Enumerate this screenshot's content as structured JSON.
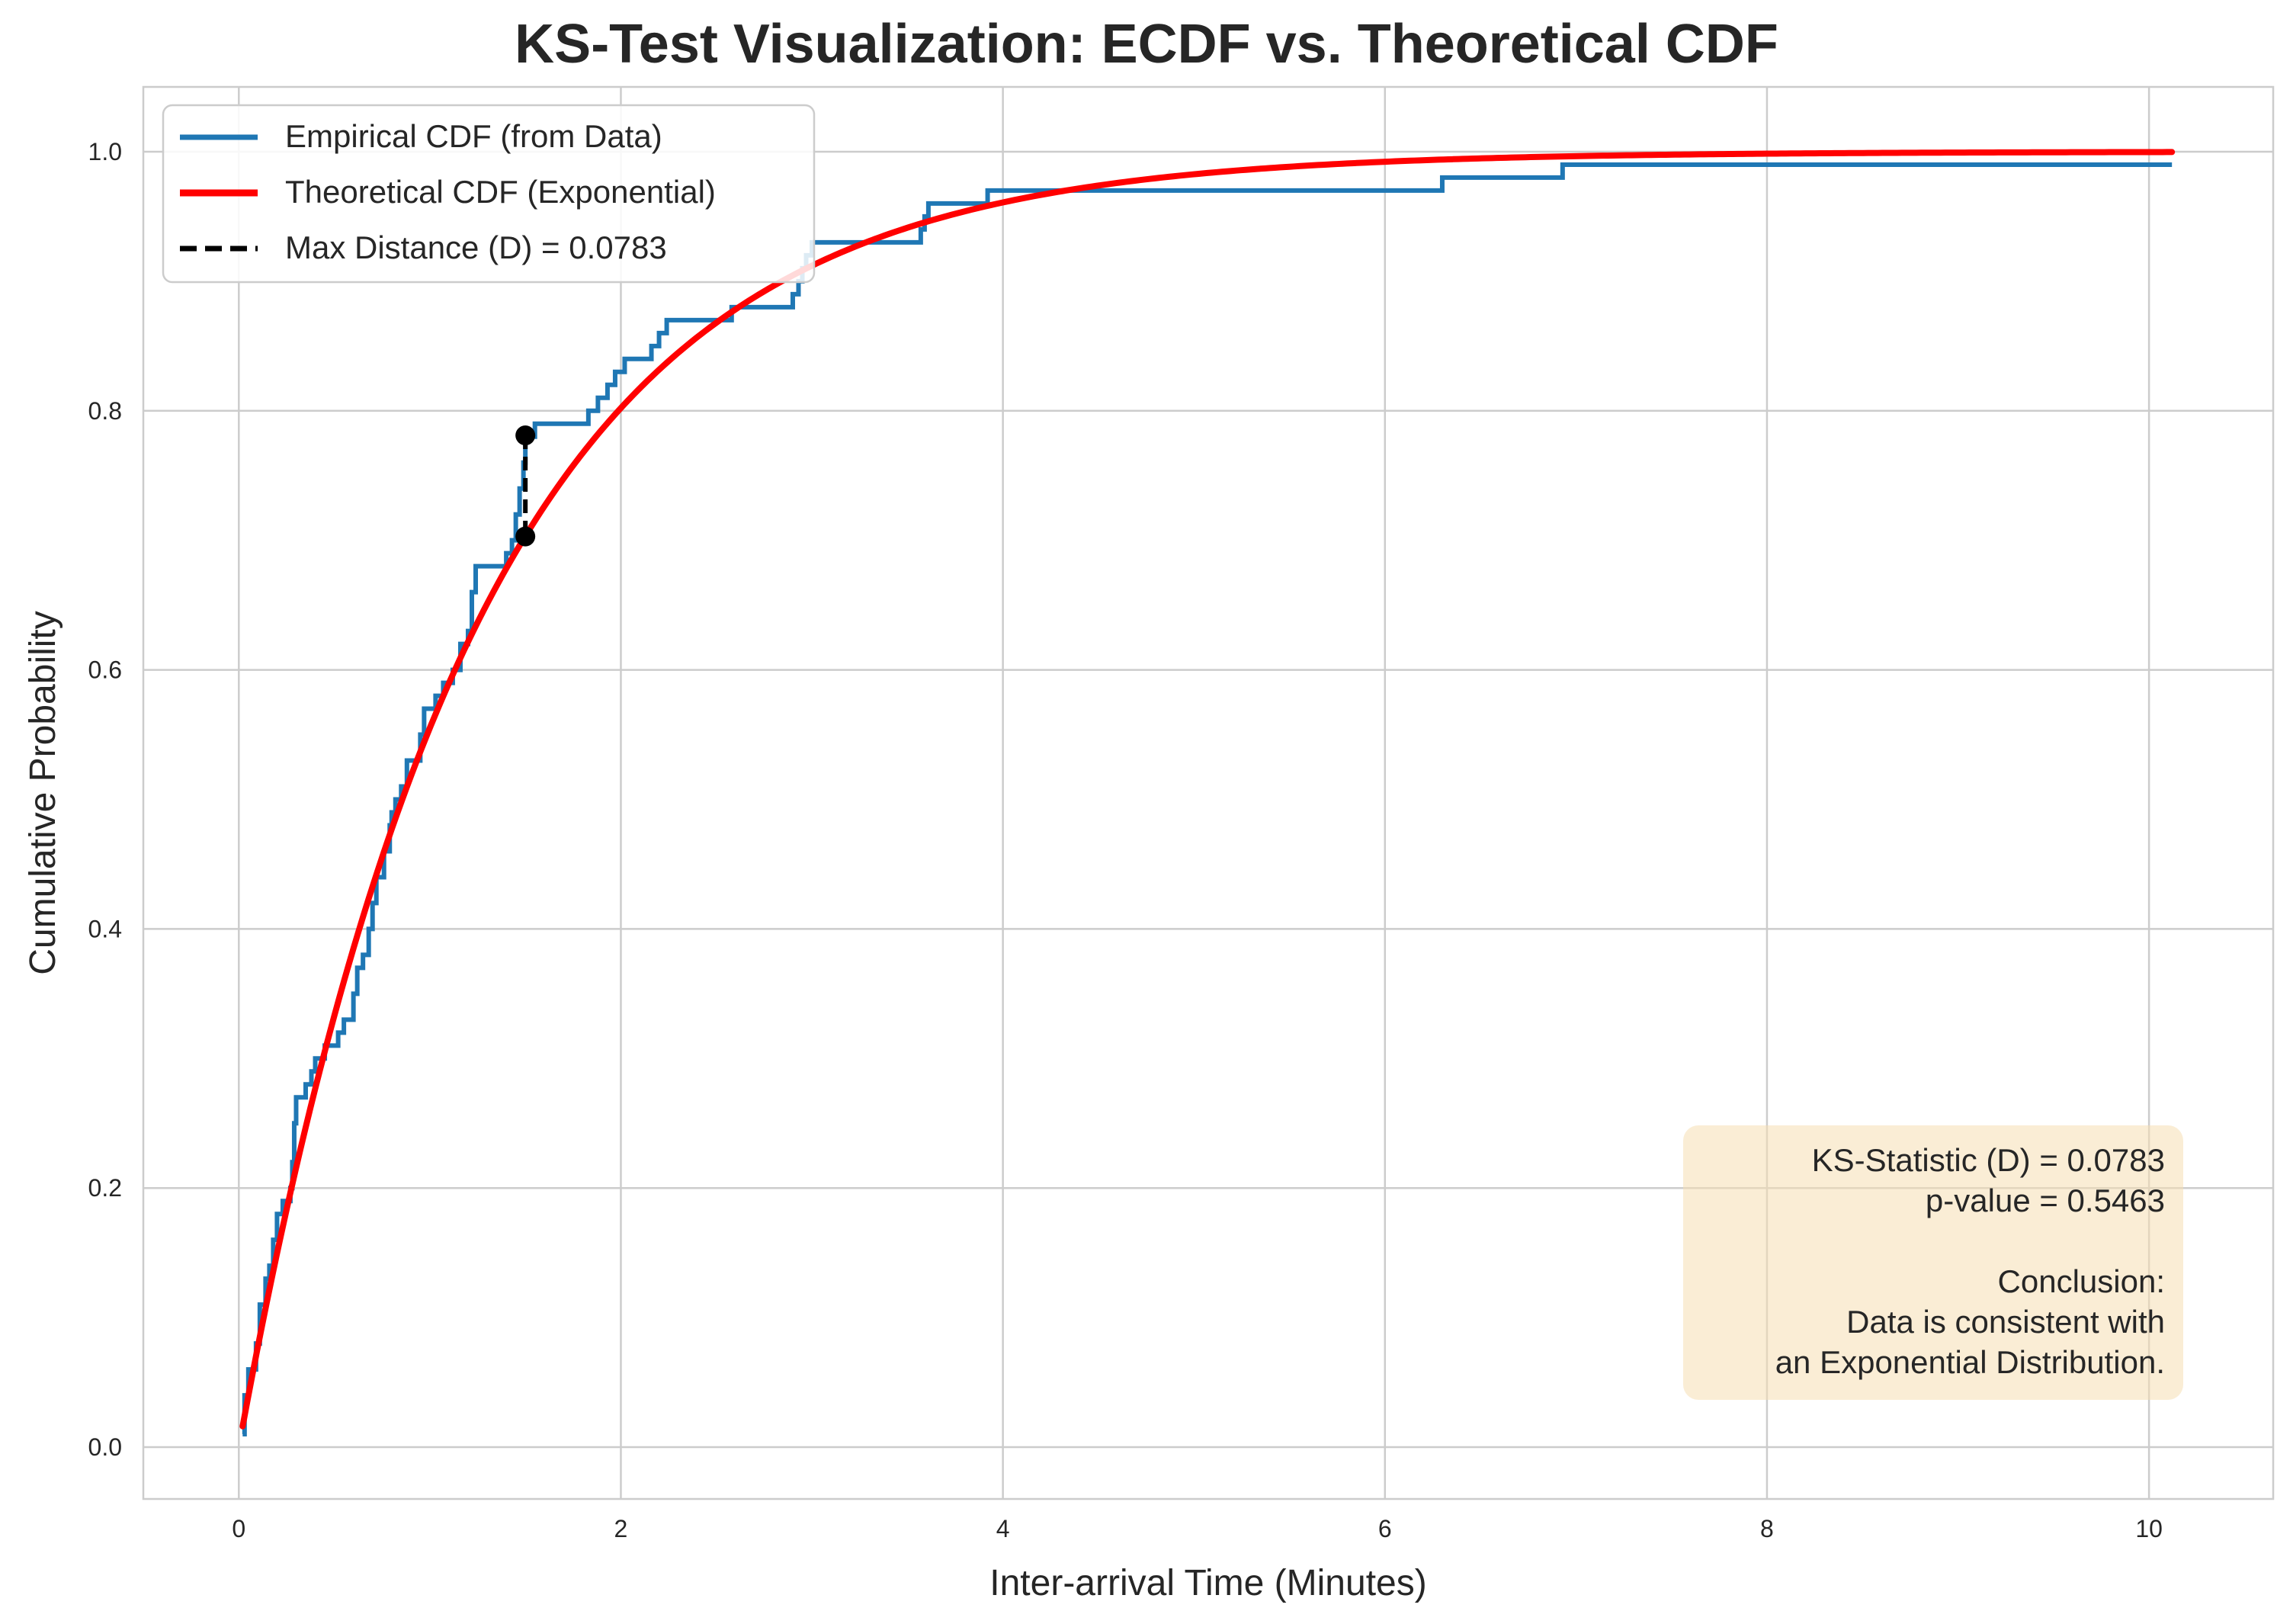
{
  "chart_data": {
    "type": "line",
    "title": "KS-Test Visualization: ECDF vs. Theoretical CDF",
    "xlabel": "Inter-arrival Time (Minutes)",
    "ylabel": "Cumulative Probability",
    "xlim": [
      -0.5,
      10.65
    ],
    "ylim": [
      -0.04,
      1.05
    ],
    "xticks": [
      0,
      2,
      4,
      6,
      8,
      10
    ],
    "yticks": [
      0.0,
      0.2,
      0.4,
      0.6,
      0.8,
      1.0
    ],
    "xtick_labels": [
      "0",
      "2",
      "4",
      "6",
      "8",
      "10"
    ],
    "ytick_labels": [
      "0.0",
      "0.2",
      "0.4",
      "0.6",
      "0.8",
      "1.0"
    ],
    "grid": true,
    "legend_position": "top-left",
    "colors": {
      "ecdf": "#1f77b4",
      "theoretical": "#ff0000",
      "max_distance": "#000000",
      "info_box": "#f5deb3",
      "grid": "#cccccc"
    },
    "series": [
      {
        "name": "Empirical CDF (from Data)",
        "style": "step",
        "points": [
          [
            0.02,
            0.01
          ],
          [
            0.03,
            0.04
          ],
          [
            0.05,
            0.06
          ],
          [
            0.09,
            0.08
          ],
          [
            0.11,
            0.11
          ],
          [
            0.14,
            0.13
          ],
          [
            0.16,
            0.14
          ],
          [
            0.18,
            0.16
          ],
          [
            0.2,
            0.18
          ],
          [
            0.23,
            0.19
          ],
          [
            0.27,
            0.2
          ],
          [
            0.28,
            0.22
          ],
          [
            0.29,
            0.25
          ],
          [
            0.3,
            0.27
          ],
          [
            0.35,
            0.28
          ],
          [
            0.38,
            0.29
          ],
          [
            0.4,
            0.3
          ],
          [
            0.45,
            0.31
          ],
          [
            0.52,
            0.32
          ],
          [
            0.55,
            0.33
          ],
          [
            0.6,
            0.35
          ],
          [
            0.62,
            0.37
          ],
          [
            0.65,
            0.38
          ],
          [
            0.68,
            0.4
          ],
          [
            0.7,
            0.42
          ],
          [
            0.72,
            0.44
          ],
          [
            0.76,
            0.46
          ],
          [
            0.79,
            0.48
          ],
          [
            0.8,
            0.49
          ],
          [
            0.82,
            0.5
          ],
          [
            0.85,
            0.51
          ],
          [
            0.88,
            0.53
          ],
          [
            0.95,
            0.55
          ],
          [
            0.97,
            0.57
          ],
          [
            1.03,
            0.58
          ],
          [
            1.07,
            0.59
          ],
          [
            1.12,
            0.6
          ],
          [
            1.16,
            0.62
          ],
          [
            1.2,
            0.63
          ],
          [
            1.22,
            0.66
          ],
          [
            1.24,
            0.68
          ],
          [
            1.4,
            0.69
          ],
          [
            1.43,
            0.7
          ],
          [
            1.45,
            0.72
          ],
          [
            1.47,
            0.74
          ],
          [
            1.49,
            0.76
          ],
          [
            1.5,
            0.78
          ],
          [
            1.55,
            0.79
          ],
          [
            1.83,
            0.8
          ],
          [
            1.88,
            0.81
          ],
          [
            1.93,
            0.82
          ],
          [
            1.97,
            0.83
          ],
          [
            2.02,
            0.84
          ],
          [
            2.16,
            0.85
          ],
          [
            2.2,
            0.86
          ],
          [
            2.24,
            0.87
          ],
          [
            2.58,
            0.88
          ],
          [
            2.9,
            0.89
          ],
          [
            2.93,
            0.9
          ],
          [
            2.95,
            0.91
          ],
          [
            2.97,
            0.92
          ],
          [
            3.0,
            0.93
          ],
          [
            3.57,
            0.94
          ],
          [
            3.59,
            0.95
          ],
          [
            3.61,
            0.96
          ],
          [
            3.92,
            0.97
          ],
          [
            6.3,
            0.98
          ],
          [
            6.93,
            0.99
          ],
          [
            10.12,
            0.99
          ]
        ]
      },
      {
        "name": "Theoretical CDF (Exponential)",
        "style": "line",
        "distribution": "exponential",
        "rate": 0.81,
        "x_range": [
          0.02,
          10.12
        ]
      },
      {
        "name": "Max Distance (D) = 0.0783",
        "style": "dashed",
        "points": [
          [
            1.5,
            0.781
          ],
          [
            1.5,
            0.703
          ]
        ]
      }
    ],
    "annotation": {
      "lines": [
        "KS-Statistic (D) = 0.0783",
        "p-value = 0.5463",
        "",
        "Conclusion:",
        "Data is consistent with",
        "an Exponential Distribution."
      ]
    }
  }
}
